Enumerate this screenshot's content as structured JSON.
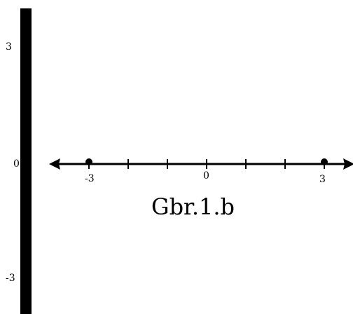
{
  "side_labels": {
    "top": "3",
    "middle": "0",
    "bottom": "-3"
  },
  "number_line": {
    "ticks": [
      -3,
      -2,
      -1,
      0,
      1,
      2,
      3
    ],
    "tick_labels": {
      "left": "-3",
      "center": "0",
      "right": "3"
    },
    "points": [
      -3,
      3
    ],
    "arrows": "both-ends"
  },
  "caption": "Gbr.1.b",
  "colors": {
    "ink": "#000000",
    "background": "#ffffff"
  }
}
